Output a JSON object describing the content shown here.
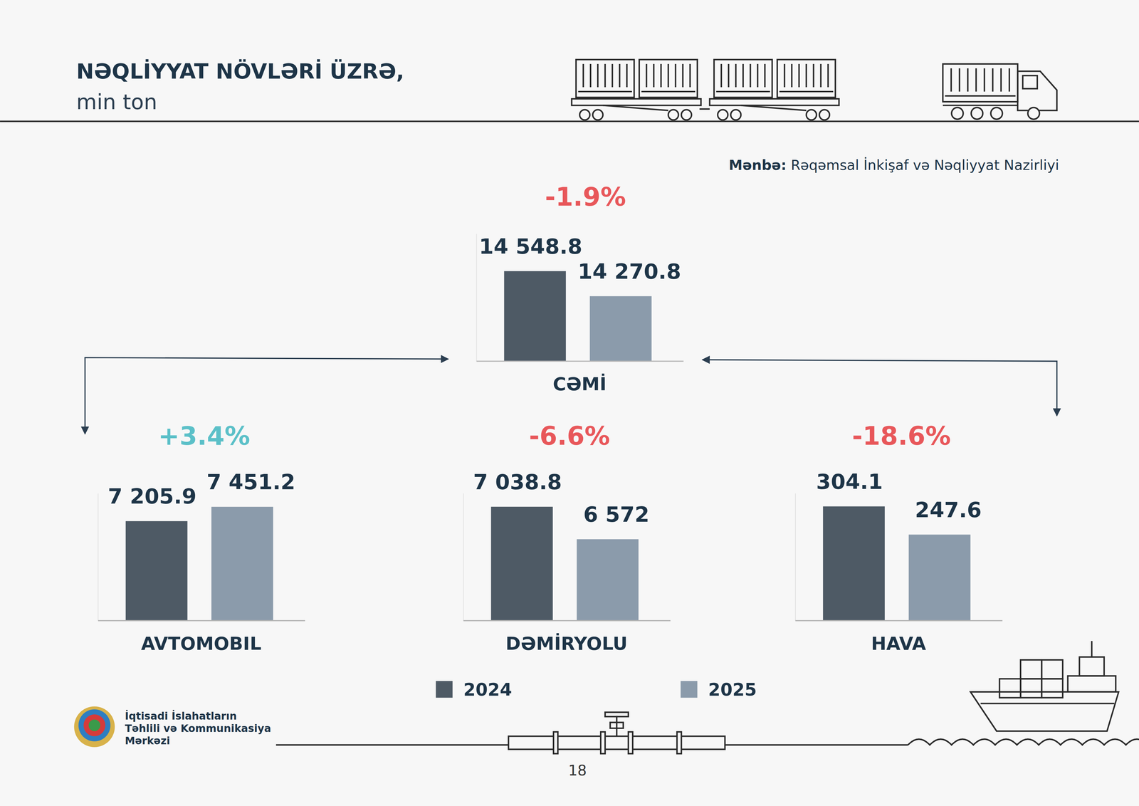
{
  "header": {
    "title": "NƏQLİYYAT NÖVLƏRİ ÜZRƏ,",
    "subtitle": "min ton",
    "source_label": "Mənbə:",
    "source": "Rəqəmsal İnkişaf və Nəqliyyat Nazirliyi"
  },
  "chart_data": [
    {
      "type": "bar",
      "categories": [
        "CƏMİ"
      ],
      "annotation": "-1.9%",
      "series": [
        {
          "name": "2024",
          "color": "#4e5a65",
          "values": [
            14548.8
          ],
          "value_labels": [
            "14 548.8"
          ]
        },
        {
          "name": "2025",
          "color": "#8b9bab",
          "values": [
            14270.8
          ],
          "value_labels": [
            "14 270.8"
          ]
        }
      ],
      "ylim": [
        13550,
        14960
      ],
      "data_labels": true,
      "tick_labels": "x",
      "grid": false
    },
    {
      "type": "bar",
      "categories": [
        "AVTOMOBIL"
      ],
      "annotation": "+3.4%",
      "series": [
        {
          "name": "2024",
          "color": "#4e5a65",
          "values": [
            7205.9
          ],
          "value_labels": [
            "7 205.9"
          ]
        },
        {
          "name": "2025",
          "color": "#8b9bab",
          "values": [
            7451.2
          ],
          "value_labels": [
            "7 451.2"
          ]
        }
      ],
      "ylim": [
        5500,
        7680
      ],
      "data_labels": true,
      "tick_labels": "x",
      "grid": false
    },
    {
      "type": "bar",
      "categories": [
        "DƏMİRYOLU"
      ],
      "annotation": "-6.6%",
      "series": [
        {
          "name": "2024",
          "color": "#4e5a65",
          "values": [
            7038.8
          ],
          "value_labels": [
            "7 038.8"
          ]
        },
        {
          "name": "2025",
          "color": "#8b9bab",
          "values": [
            6572
          ],
          "value_labels": [
            "6 572"
          ]
        }
      ],
      "ylim": [
        5400,
        7230
      ],
      "data_labels": true,
      "tick_labels": "x",
      "grid": false,
      "legend": "bottom"
    },
    {
      "type": "bar",
      "categories": [
        "HAVA"
      ],
      "annotation": "-18.6%",
      "series": [
        {
          "name": "2024",
          "color": "#4e5a65",
          "values": [
            304.1
          ],
          "value_labels": [
            "304.1"
          ]
        },
        {
          "name": "2025",
          "color": "#8b9bab",
          "values": [
            247.6
          ],
          "value_labels": [
            "247.6"
          ]
        }
      ],
      "ylim": [
        75,
        330
      ],
      "data_labels": true,
      "tick_labels": "x",
      "grid": false
    }
  ],
  "footer": {
    "organization": [
      "İqtisadi İslahatların",
      "Təhlili və Kommunikasiya",
      "Mərkəzi"
    ],
    "page": "18"
  }
}
